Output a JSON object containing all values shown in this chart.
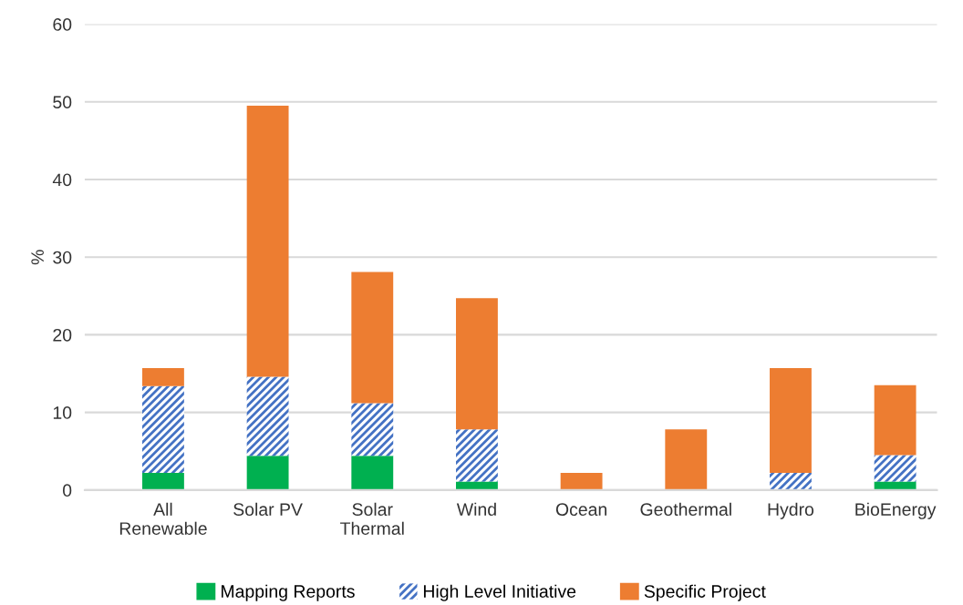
{
  "chart_data": {
    "type": "bar",
    "stacked": true,
    "ylabel": "%",
    "categories": [
      "All\nRenewable",
      "Solar PV",
      "Solar\nThermal",
      "Wind",
      "Ocean",
      "Geothermal",
      "Hydro",
      "BioEnergy"
    ],
    "series": [
      {
        "name": "Mapping Reports",
        "color": "#00b050",
        "values": [
          2.2,
          4.4,
          4.4,
          1.1,
          0,
          0,
          0,
          1.1
        ]
      },
      {
        "name": "High Level Initiative",
        "color": "#4472c4",
        "values": [
          11.2,
          10.2,
          6.8,
          6.7,
          0,
          0,
          2.2,
          3.4
        ]
      },
      {
        "name": "Specific Project",
        "color": "#ed7d31",
        "values": [
          2.3,
          34.9,
          16.9,
          16.9,
          2.2,
          7.8,
          13.5,
          9.0
        ]
      }
    ],
    "ylim": [
      0,
      60
    ],
    "yticks": [
      0,
      10,
      20,
      30,
      40,
      50,
      60
    ],
    "grid": "y",
    "legend": "bottom"
  }
}
